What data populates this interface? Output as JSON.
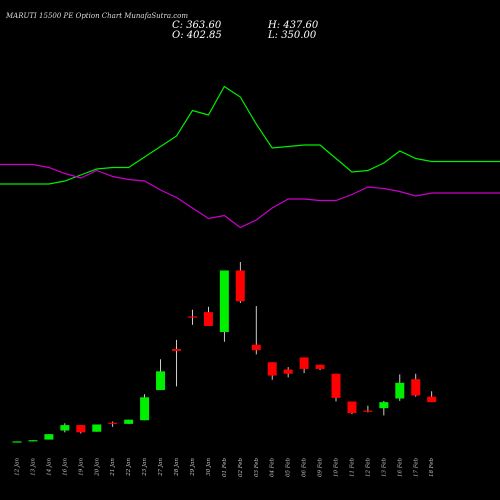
{
  "header": {
    "title": "MARUTI 15500  PE Option  Chart MunafaSutra.com",
    "close_label": "C: 363.60",
    "open_label": "O: 402.85",
    "high_label": "H: 437.60",
    "low_label": "L: 350.00"
  },
  "chart_data": {
    "type": "candlestick",
    "title": "MARUTI 15500  PE Option  Chart MunafaSutra.com",
    "colors": {
      "up": "#00ee00",
      "down": "#ff0000",
      "line_green": "#00ee00",
      "line_magenta": "#cc00cc",
      "background": "#000000"
    },
    "categories": [
      "12 Jan",
      "13 Jan",
      "14 Jan",
      "16 Jan",
      "19 Jan",
      "20 Jan",
      "21 Jan",
      "22 Jan",
      "23 Jan",
      "27 Jan",
      "28 Jan",
      "29 Jan",
      "30 Jan",
      "01 Feb",
      "02 Feb",
      "03 Feb",
      "04 Feb",
      "05 Feb",
      "06 Feb",
      "09 Feb",
      "10 Feb",
      "11 Feb",
      "12 Feb",
      "13 Feb",
      "16 Feb",
      "17 Feb",
      "18 Feb"
    ],
    "candles": [
      {
        "o": 6,
        "h": 7,
        "l": 6,
        "c": 7
      },
      {
        "o": 7,
        "h": 9,
        "l": 7,
        "c": 9
      },
      {
        "o": 10,
        "h": 19,
        "l": 10,
        "c": 19
      },
      {
        "o": 25,
        "h": 37,
        "l": 22,
        "c": 34
      },
      {
        "o": 34,
        "h": 34,
        "l": 20,
        "c": 22
      },
      {
        "o": 23,
        "h": 35,
        "l": 23,
        "c": 35
      },
      {
        "o": 38,
        "h": 40,
        "l": 31,
        "c": 37
      },
      {
        "o": 36,
        "h": 43,
        "l": 36,
        "c": 43
      },
      {
        "o": 42,
        "h": 85,
        "l": 42,
        "c": 80
      },
      {
        "o": 92,
        "h": 143,
        "l": 92,
        "c": 123
      },
      {
        "o": 160,
        "h": 175,
        "l": 98,
        "c": 157
      },
      {
        "o": 214,
        "h": 225,
        "l": 200,
        "c": 213
      },
      {
        "o": 221,
        "h": 230,
        "l": 199,
        "c": 198
      },
      {
        "o": 188,
        "h": 288,
        "l": 172,
        "c": 290
      },
      {
        "o": 290,
        "h": 304,
        "l": 236,
        "c": 239
      },
      {
        "o": 167,
        "h": 231,
        "l": 151,
        "c": 158
      },
      {
        "o": 138,
        "h": 138,
        "l": 109,
        "c": 116
      },
      {
        "o": 126,
        "h": 130,
        "l": 113,
        "c": 119
      },
      {
        "o": 146,
        "h": 146,
        "l": 120,
        "c": 127
      },
      {
        "o": 134,
        "h": 134,
        "l": 125,
        "c": 127
      },
      {
        "o": 119,
        "h": 119,
        "l": 73,
        "c": 79
      },
      {
        "o": 73,
        "h": 73,
        "l": 52,
        "c": 54
      },
      {
        "o": 58,
        "h": 66,
        "l": 55,
        "c": 56
      },
      {
        "o": 62,
        "h": 74,
        "l": 50,
        "c": 72
      },
      {
        "o": 78,
        "h": 118,
        "l": 74,
        "c": 104
      },
      {
        "o": 110,
        "h": 119,
        "l": 81,
        "c": 83
      },
      {
        "o": 81,
        "h": 90,
        "l": 72,
        "c": 72
      }
    ],
    "indicator_lines": [
      {
        "color": "green",
        "values": [
          0.68,
          0.68,
          0.68,
          0.66,
          0.62,
          0.58,
          0.57,
          0.57,
          0.5,
          0.43,
          0.36,
          0.19,
          0.22,
          0.03,
          0.1,
          0.28,
          0.44,
          0.43,
          0.42,
          0.42,
          0.51,
          0.6,
          0.59,
          0.54,
          0.46,
          0.51,
          0.53
        ]
      },
      {
        "color": "magenta",
        "values": [
          0.55,
          0.55,
          0.57,
          0.61,
          0.64,
          0.59,
          0.63,
          0.65,
          0.66,
          0.72,
          0.77,
          0.84,
          0.91,
          0.89,
          0.97,
          0.92,
          0.84,
          0.78,
          0.78,
          0.79,
          0.79,
          0.75,
          0.7,
          0.71,
          0.73,
          0.76,
          0.74
        ]
      }
    ]
  }
}
